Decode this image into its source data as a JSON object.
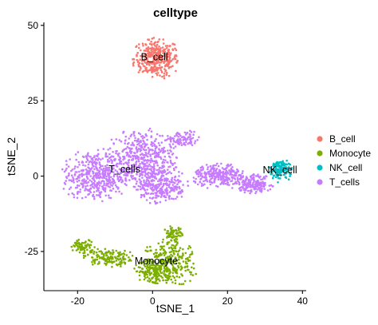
{
  "chart_data": {
    "type": "scatter",
    "title": "celltype",
    "xlabel": "tSNE_1",
    "ylabel": "tSNE_2",
    "xlim": [
      -29,
      41
    ],
    "ylim": [
      -38,
      51
    ],
    "x_ticks": [
      "-20",
      "0",
      "20",
      "40"
    ],
    "x_tick_values": [
      -20,
      0,
      20,
      40
    ],
    "y_ticks": [
      "-25",
      "0",
      "25",
      "50"
    ],
    "y_tick_values": [
      -25,
      0,
      25,
      50
    ],
    "grid": false,
    "legend_position": "right",
    "legend": [
      {
        "label": "B_cell",
        "color": "#F8766D"
      },
      {
        "label": "Monocyte",
        "color": "#7CAE00"
      },
      {
        "label": "NK_cell",
        "color": "#00BFC4"
      },
      {
        "label": "T_cells",
        "color": "#C77CFF"
      }
    ],
    "cluster_labels": [
      {
        "text": "B_cell",
        "x": 0.5,
        "y": 39.5
      },
      {
        "text": "T_cells",
        "x": -7.5,
        "y": 2.2
      },
      {
        "text": "NK_cell",
        "x": 34.0,
        "y": 2.0
      },
      {
        "text": "Monocyte",
        "x": 1.0,
        "y": -28.2
      }
    ],
    "series": [
      {
        "name": "B_cell",
        "color": "#F8766D",
        "count": 360,
        "regions": [
          {
            "cx": 1.0,
            "cy": 39.0,
            "rx": 6.0,
            "ry": 6.5,
            "weight": 1
          }
        ]
      },
      {
        "name": "Monocyte",
        "color": "#7CAE00",
        "count": 700,
        "regions": [
          {
            "cx": 4.5,
            "cy": -29.0,
            "rx": 7.5,
            "ry": 7.5,
            "weight": 4
          },
          {
            "cx": -12.0,
            "cy": -27.0,
            "rx": 6.5,
            "ry": 3.2,
            "weight": 2
          },
          {
            "cx": -18.5,
            "cy": -23.5,
            "rx": 3.5,
            "ry": 2.5,
            "weight": 1
          },
          {
            "cx": 0.0,
            "cy": -31.5,
            "rx": 5.0,
            "ry": 4.0,
            "weight": 2
          },
          {
            "cx": 5.5,
            "cy": -19.5,
            "rx": 2.5,
            "ry": 3.0,
            "weight": 1
          }
        ]
      },
      {
        "name": "NK_cell",
        "color": "#00BFC4",
        "count": 150,
        "regions": [
          {
            "cx": 34.0,
            "cy": 2.0,
            "rx": 3.2,
            "ry": 3.8,
            "weight": 1
          }
        ]
      },
      {
        "name": "T_cells",
        "color": "#C77CFF",
        "count": 1700,
        "regions": [
          {
            "cx": -15.0,
            "cy": 0.0,
            "rx": 9.0,
            "ry": 8.5,
            "weight": 5
          },
          {
            "cx": -3.0,
            "cy": 6.0,
            "rx": 9.0,
            "ry": 9.5,
            "weight": 5
          },
          {
            "cx": 2.0,
            "cy": -3.0,
            "rx": 7.0,
            "ry": 6.0,
            "weight": 3
          },
          {
            "cx": 18.0,
            "cy": 0.0,
            "rx": 7.0,
            "ry": 4.0,
            "weight": 3
          },
          {
            "cx": 27.0,
            "cy": -2.5,
            "rx": 5.0,
            "ry": 3.0,
            "weight": 2
          },
          {
            "cx": 8.0,
            "cy": 12.0,
            "rx": 5.0,
            "ry": 3.0,
            "weight": 1
          }
        ]
      }
    ]
  }
}
